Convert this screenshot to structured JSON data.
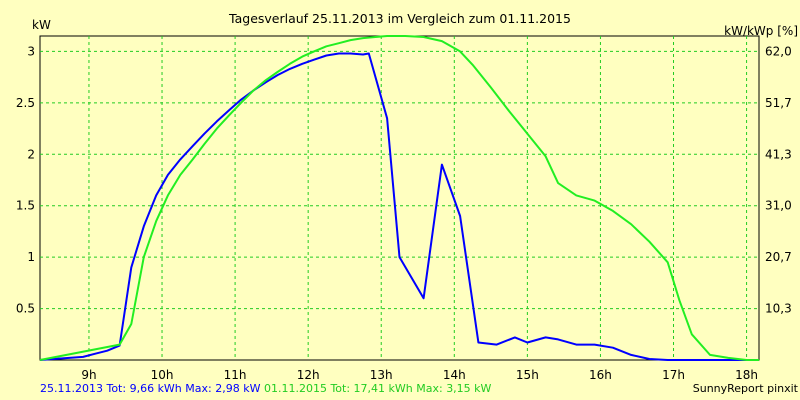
{
  "chart_data": {
    "type": "line",
    "title": "Tagesverlauf 25.11.2013 im Vergleich zum 01.11.2015",
    "ylabel_left": "kW",
    "ylabel_right": "kW/kWp [%]",
    "xlim": [
      8.33,
      18.17
    ],
    "ylim": [
      0,
      3.15
    ],
    "x_ticks": [
      9,
      10,
      11,
      12,
      13,
      14,
      15,
      16,
      17,
      18
    ],
    "x_tick_labels": [
      "9h",
      "10h",
      "11h",
      "12h",
      "13h",
      "14h",
      "15h",
      "16h",
      "17h",
      "18h"
    ],
    "y_ticks": [
      0.5,
      1,
      1.5,
      2,
      2.5,
      3
    ],
    "y_tick_labels": [
      "0.5",
      "1",
      "1.5",
      "2",
      "2.5",
      "3"
    ],
    "y2_ticks": [
      0.5,
      1,
      1.5,
      2,
      2.5,
      3
    ],
    "y2_tick_labels": [
      "10,3",
      "20,7",
      "31,0",
      "41,3",
      "51,7",
      "62,0"
    ],
    "grid": true,
    "series": [
      {
        "name": "25.11.2013 Tot: 9,66 kWh Max: 2,98 kW",
        "color": "#0000ff",
        "x": [
          8.33,
          8.92,
          9.08,
          9.25,
          9.42,
          9.58,
          9.75,
          9.92,
          10.08,
          10.25,
          10.42,
          10.58,
          10.75,
          10.92,
          11.08,
          11.25,
          11.42,
          11.58,
          11.75,
          11.92,
          12.08,
          12.25,
          12.42,
          12.58,
          12.75,
          12.83,
          13.08,
          13.25,
          13.58,
          13.83,
          14.08,
          14.33,
          14.58,
          14.83,
          15.0,
          15.25,
          15.42,
          15.67,
          15.92,
          16.17,
          16.42,
          16.67,
          16.92,
          17.17,
          17.5,
          18.17
        ],
        "y": [
          0.0,
          0.03,
          0.06,
          0.09,
          0.14,
          0.9,
          1.3,
          1.6,
          1.8,
          1.95,
          2.08,
          2.2,
          2.32,
          2.43,
          2.53,
          2.62,
          2.7,
          2.77,
          2.83,
          2.88,
          2.92,
          2.96,
          2.98,
          2.98,
          2.97,
          2.98,
          2.35,
          1.0,
          0.6,
          1.9,
          1.4,
          0.17,
          0.15,
          0.22,
          0.17,
          0.22,
          0.2,
          0.15,
          0.15,
          0.12,
          0.05,
          0.01,
          0.0,
          0.0,
          0.0,
          0.0
        ]
      },
      {
        "name": "01.11.2015 Tot: 17,41 kWh Max: 3,15 kW",
        "color": "#22ee22",
        "x": [
          8.33,
          9.42,
          9.58,
          9.75,
          9.92,
          10.08,
          10.25,
          10.42,
          10.58,
          10.75,
          10.92,
          11.08,
          11.25,
          11.42,
          11.58,
          11.75,
          11.92,
          12.08,
          12.25,
          12.42,
          12.58,
          12.75,
          12.92,
          13.08,
          13.33,
          13.58,
          13.83,
          14.08,
          14.25,
          14.5,
          14.75,
          15.0,
          15.25,
          15.42,
          15.67,
          15.92,
          16.17,
          16.42,
          16.67,
          16.92,
          17.08,
          17.25,
          17.5,
          17.75,
          18.0,
          18.17
        ],
        "y": [
          0.0,
          0.15,
          0.35,
          1.0,
          1.35,
          1.6,
          1.8,
          1.95,
          2.1,
          2.25,
          2.38,
          2.5,
          2.62,
          2.72,
          2.8,
          2.88,
          2.95,
          3.0,
          3.05,
          3.08,
          3.11,
          3.13,
          3.14,
          3.15,
          3.15,
          3.14,
          3.1,
          3.0,
          2.87,
          2.65,
          2.42,
          2.2,
          1.98,
          1.72,
          1.6,
          1.55,
          1.45,
          1.32,
          1.15,
          0.95,
          0.58,
          0.25,
          0.05,
          0.02,
          0.0,
          0.0
        ]
      }
    ],
    "footer_right": "SunnyReport pinxit"
  }
}
